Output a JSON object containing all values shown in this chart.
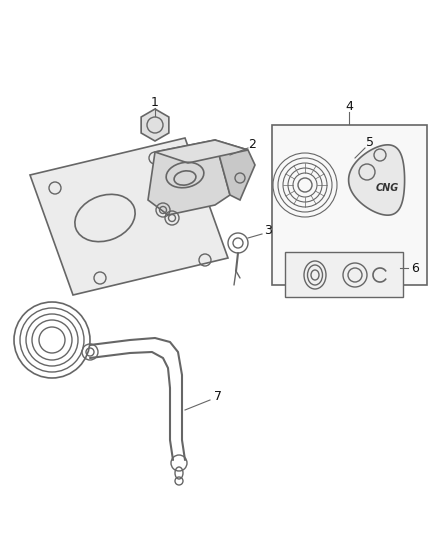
{
  "bg_color": "#ffffff",
  "line_color": "#666666",
  "fig_width": 4.38,
  "fig_height": 5.33,
  "dpi": 100
}
